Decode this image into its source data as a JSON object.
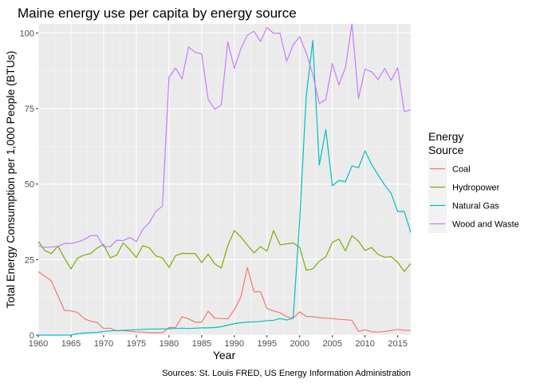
{
  "chart_data": {
    "type": "line",
    "title": "Maine energy use per capita by energy source",
    "xlabel": "Year",
    "ylabel": "Total Energy Consumption per 1,000 People (BTUs)",
    "caption": "Sources: St. Louis FRED, US Energy Information Administration",
    "xlim": [
      1960,
      2017
    ],
    "ylim": [
      0,
      103
    ],
    "x_ticks": [
      "1960",
      "1965",
      "1970",
      "1975",
      "1980",
      "1985",
      "1990",
      "1995",
      "2000",
      "2005",
      "2010",
      "2015"
    ],
    "y_ticks": [
      "0",
      "25",
      "50",
      "75",
      "100"
    ],
    "grid": true,
    "legend": {
      "title": "Energy\nSource",
      "position": "right"
    },
    "x": [
      1960,
      1961,
      1962,
      1963,
      1964,
      1965,
      1966,
      1967,
      1968,
      1969,
      1970,
      1971,
      1972,
      1973,
      1974,
      1975,
      1976,
      1977,
      1978,
      1979,
      1980,
      1981,
      1982,
      1983,
      1984,
      1985,
      1986,
      1987,
      1988,
      1989,
      1990,
      1991,
      1992,
      1993,
      1994,
      1995,
      1996,
      1997,
      1998,
      1999,
      2000,
      2001,
      2002,
      2003,
      2004,
      2005,
      2006,
      2007,
      2008,
      2009,
      2010,
      2011,
      2012,
      2013,
      2014,
      2015,
      2016,
      2017
    ],
    "series": [
      {
        "name": "Coal",
        "color": "#F8766D",
        "values": [
          21,
          19.5,
          18,
          13,
          8.2,
          8,
          7.5,
          5.5,
          4.6,
          4.2,
          2.2,
          2.3,
          1.4,
          1.5,
          1.3,
          1.1,
          1,
          0.8,
          0.8,
          0.8,
          2.5,
          2.5,
          6.1,
          5.4,
          4.3,
          4.3,
          7.9,
          5.6,
          5.5,
          5.4,
          8.4,
          12.6,
          22.4,
          14.3,
          14.4,
          8.8,
          8,
          7.4,
          6.1,
          5.6,
          7.7,
          6.2,
          6.1,
          5.8,
          5.6,
          5.5,
          5.2,
          5.1,
          4.9,
          1.2,
          1.8,
          1.1,
          1,
          1.2,
          1.5,
          1.9,
          1.6,
          1.6
        ]
      },
      {
        "name": "Hydropower",
        "color": "#7CAE00",
        "values": [
          31,
          28,
          27,
          29.5,
          25.5,
          21.9,
          25.5,
          26.5,
          27,
          28.8,
          30,
          25.6,
          26.5,
          30.5,
          28.3,
          25.7,
          29.6,
          28.9,
          26.2,
          25.6,
          22.4,
          26.3,
          27.1,
          27,
          27,
          24,
          26.8,
          23.6,
          22.2,
          29.6,
          34.6,
          32.5,
          29.8,
          27.2,
          29.3,
          27.8,
          34.6,
          29.9,
          30.2,
          30.5,
          29.1,
          21.5,
          21.9,
          24.5,
          25.9,
          30.7,
          31.8,
          27.9,
          32.9,
          31.1,
          28,
          29,
          26.7,
          25.8,
          26,
          24.1,
          21.1,
          23.7
        ]
      },
      {
        "name": "Natural Gas",
        "color": "#00BFC4",
        "values": [
          0,
          0,
          0,
          0,
          0,
          0,
          0.5,
          0.7,
          0.8,
          0.9,
          1.2,
          1.4,
          1.5,
          1.6,
          1.7,
          1.8,
          1.9,
          2,
          2,
          2.1,
          2.1,
          2.2,
          2.3,
          2.2,
          2.3,
          2.4,
          2.4,
          2.5,
          2.8,
          3.3,
          3.8,
          4.1,
          4.3,
          4.4,
          4.5,
          4.8,
          4.9,
          5.5,
          5,
          5.6,
          38,
          79,
          97.5,
          56.3,
          68,
          49.4,
          51.2,
          50.8,
          56,
          55.4,
          61,
          56.5,
          53,
          49.7,
          46.9,
          40.9,
          40.9,
          34
        ]
      },
      {
        "name": "Wood and Waste",
        "color": "#C77CFF",
        "values": [
          29.5,
          29,
          29.2,
          29.3,
          30.4,
          30.3,
          30.8,
          31.6,
          32.9,
          33,
          29.3,
          29.3,
          31.4,
          31.3,
          32.3,
          31,
          35.1,
          37.3,
          41,
          42.7,
          85.3,
          88.4,
          84.8,
          95.4,
          93.6,
          93.1,
          78,
          74.8,
          76.2,
          97.1,
          88.3,
          94.8,
          99.3,
          100.6,
          97.2,
          101.8,
          99.9,
          99.9,
          90.6,
          96,
          98.8,
          93.4,
          86.4,
          76.6,
          78,
          89.9,
          82.8,
          88.6,
          103,
          78.3,
          88,
          87.2,
          84.6,
          88.3,
          84.4,
          88.5,
          74,
          74.6
        ]
      }
    ]
  }
}
